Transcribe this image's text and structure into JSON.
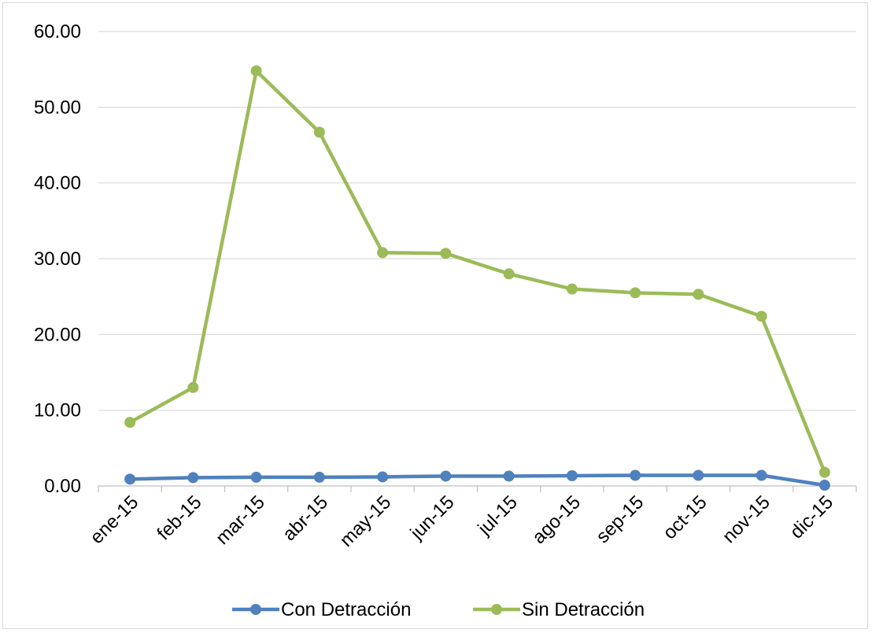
{
  "chart_data": {
    "type": "line",
    "title": "",
    "xlabel": "",
    "ylabel": "",
    "categories": [
      "ene-15",
      "feb-15",
      "mar-15",
      "abr-15",
      "may-15",
      "jun-15",
      "jul-15",
      "ago-15",
      "sep-15",
      "oct-15",
      "nov-15",
      "dic-15"
    ],
    "ylim": [
      0,
      60
    ],
    "yticks": [
      "0.00",
      "10.00",
      "20.00",
      "30.00",
      "40.00",
      "50.00",
      "60.00"
    ],
    "grid": "horizontal",
    "legend_position": "bottom",
    "series": [
      {
        "name": "Con Detracción",
        "color": "#4f81bd",
        "values": [
          0.9,
          1.1,
          1.15,
          1.15,
          1.2,
          1.3,
          1.3,
          1.35,
          1.4,
          1.4,
          1.4,
          0.1
        ]
      },
      {
        "name": "Sin Detracción",
        "color": "#9bbb59",
        "values": [
          8.4,
          13.0,
          54.8,
          46.7,
          30.8,
          30.7,
          28.0,
          26.0,
          25.5,
          25.3,
          22.4,
          1.8
        ]
      }
    ]
  }
}
